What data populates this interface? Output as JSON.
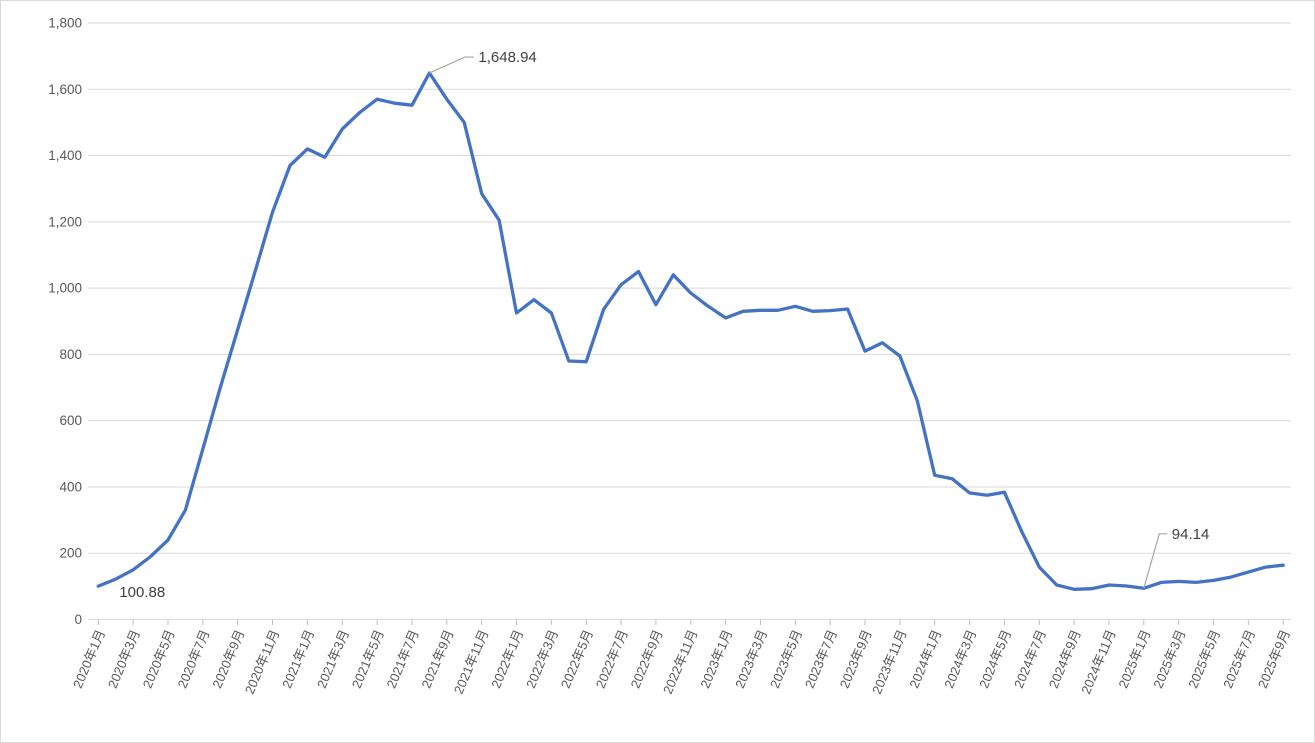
{
  "chart_data": {
    "type": "line",
    "title": "",
    "xlabel": "",
    "ylabel": "",
    "legend": null,
    "grid": true,
    "ylim": [
      0,
      1800
    ],
    "ytick_step": 200,
    "y_tick_labels": [
      "1,800",
      "1,600",
      "1,400",
      "1,200",
      "1,000",
      "800",
      "600",
      "400",
      "200",
      "0"
    ],
    "x_tick_label_interval": 2,
    "x": [
      "2020年1月",
      "2020年2月",
      "2020年3月",
      "2020年4月",
      "2020年5月",
      "2020年6月",
      "2020年7月",
      "2020年8月",
      "2020年9月",
      "2020年10月",
      "2020年11月",
      "2020年12月",
      "2021年1月",
      "2021年2月",
      "2021年3月",
      "2021年4月",
      "2021年5月",
      "2021年6月",
      "2021年7月",
      "2021年8月",
      "2021年9月",
      "2021年10月",
      "2021年11月",
      "2021年12月",
      "2022年1月",
      "2022年2月",
      "2022年3月",
      "2022年4月",
      "2022年5月",
      "2022年6月",
      "2022年7月",
      "2022年8月",
      "2022年9月",
      "2022年10月",
      "2022年11月",
      "2022年12月",
      "2023年1月",
      "2023年2月",
      "2023年3月",
      "2023年4月",
      "2023年5月",
      "2023年6月",
      "2023年7月",
      "2023年8月",
      "2023年9月",
      "2023年10月",
      "2023年11月",
      "2023年12月",
      "2024年1月",
      "2024年2月",
      "2024年3月",
      "2024年4月",
      "2024年5月",
      "2024年6月",
      "2024年7月",
      "2024年8月",
      "2024年9月",
      "2024年10月",
      "2024年11月",
      "2024年12月",
      "2025年1月",
      "2025年2月",
      "2025年3月",
      "2025年4月",
      "2025年5月",
      "2025年6月",
      "2025年7月",
      "2025年8月",
      "2025年9月"
    ],
    "values": [
      100.88,
      122,
      150,
      190,
      240,
      330,
      515,
      700,
      875,
      1050,
      1230,
      1370,
      1420,
      1395,
      1480,
      1530,
      1570,
      1558,
      1552,
      1648.94,
      1570,
      1500,
      1285,
      1205,
      925,
      965,
      925,
      780,
      778,
      936,
      1010,
      1050,
      950,
      1040,
      985,
      945,
      910,
      930,
      933,
      933,
      945,
      930,
      932,
      937,
      810,
      835,
      795,
      660,
      435,
      425,
      382,
      375,
      384,
      265,
      158,
      104,
      91,
      93,
      104,
      101,
      94.14,
      112,
      115,
      112,
      118,
      128,
      143,
      158,
      164
    ],
    "annotations": [
      {
        "text": "100.88",
        "month": "2020年1月",
        "index": 0
      },
      {
        "text": "1,648.94",
        "month": "2021年8月",
        "index": 19
      },
      {
        "text": "94.14",
        "month": "2025年1月",
        "index": 60
      }
    ],
    "colors": {
      "line": "#4472C4",
      "gridline": "#D9D9D9",
      "axis": "#D9D9D9",
      "tick": "#BFBFBF",
      "axis_label": "#595959",
      "annotation_text": "#404040",
      "leader_line": "#A6A6A6",
      "border": "#D9D9D9",
      "background": "#FFFFFF"
    }
  }
}
